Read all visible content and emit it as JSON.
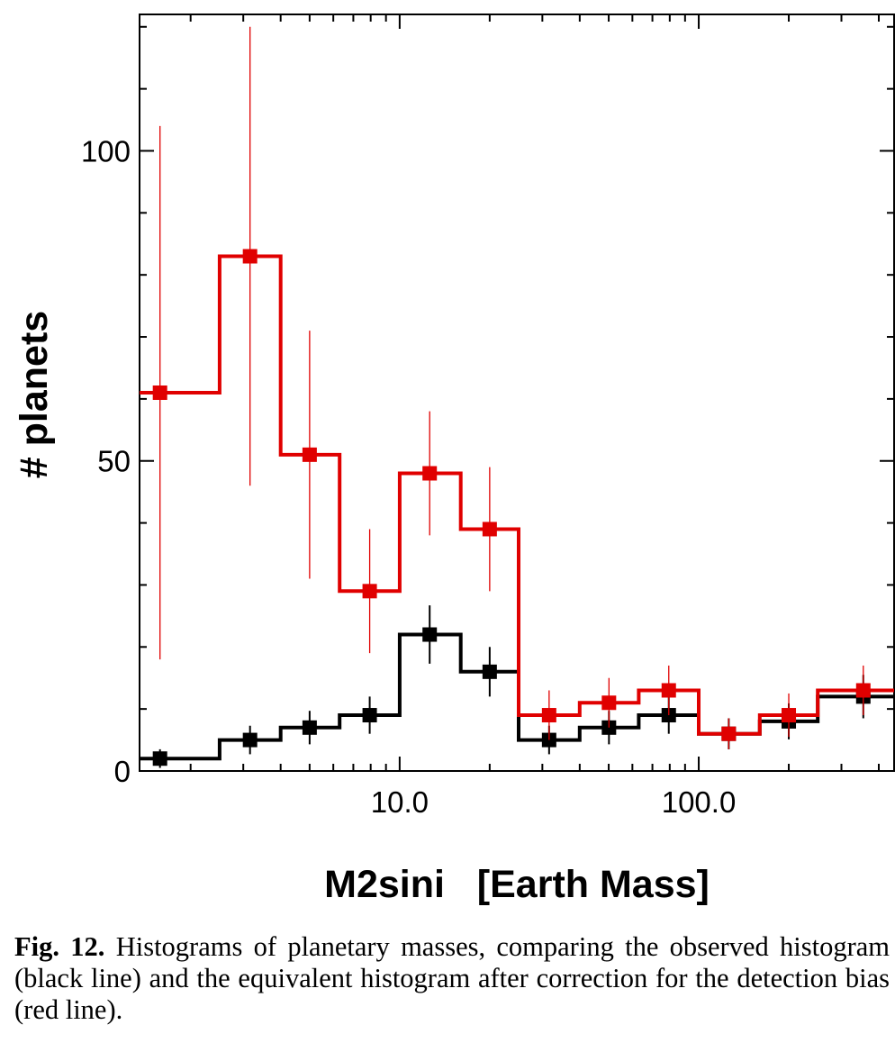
{
  "chart_data": {
    "type": "bar",
    "title": "",
    "xlabel": "M2sini   [Earth Mass]",
    "ylabel": "# planets",
    "x_scale": "log",
    "xlim": [
      1.35,
      450
    ],
    "ylim": [
      0,
      122
    ],
    "x_tick_labels": [
      "10.0",
      "100.0"
    ],
    "x_ticks": [
      10,
      100
    ],
    "y_tick_labels": [
      "0",
      "50",
      "100"
    ],
    "y_ticks": [
      0,
      50,
      100
    ],
    "bin_edges": [
      1.35,
      2.5,
      4,
      6.3,
      10,
      16,
      25,
      40,
      63,
      100,
      160,
      250,
      450
    ],
    "bin_centers": [
      1.58,
      3.16,
      5.0,
      7.94,
      12.6,
      20.0,
      31.6,
      50.1,
      79.4,
      126,
      200,
      355
    ],
    "series": [
      {
        "color": "#000000",
        "values": [
          2,
          5,
          7,
          9,
          22,
          16,
          5,
          7,
          9,
          6,
          8,
          12
        ],
        "errors": [
          1.5,
          2.3,
          2.7,
          3.0,
          4.7,
          4.0,
          2.3,
          2.7,
          3.0,
          2.5,
          2.9,
          3.5
        ]
      },
      {
        "color": "#e00000",
        "values": [
          61,
          83,
          51,
          29,
          48,
          39,
          9,
          11,
          13,
          6,
          9,
          13
        ],
        "errors": [
          43,
          37,
          20,
          10,
          10,
          10,
          4,
          4,
          4,
          2.5,
          3.5,
          4
        ]
      }
    ]
  },
  "caption": {
    "label": "Fig. 12.",
    "text": "Histograms of planetary masses, comparing the observed histogram (black line) and the equivalent histogram after correction for the detection bias (red line)."
  }
}
